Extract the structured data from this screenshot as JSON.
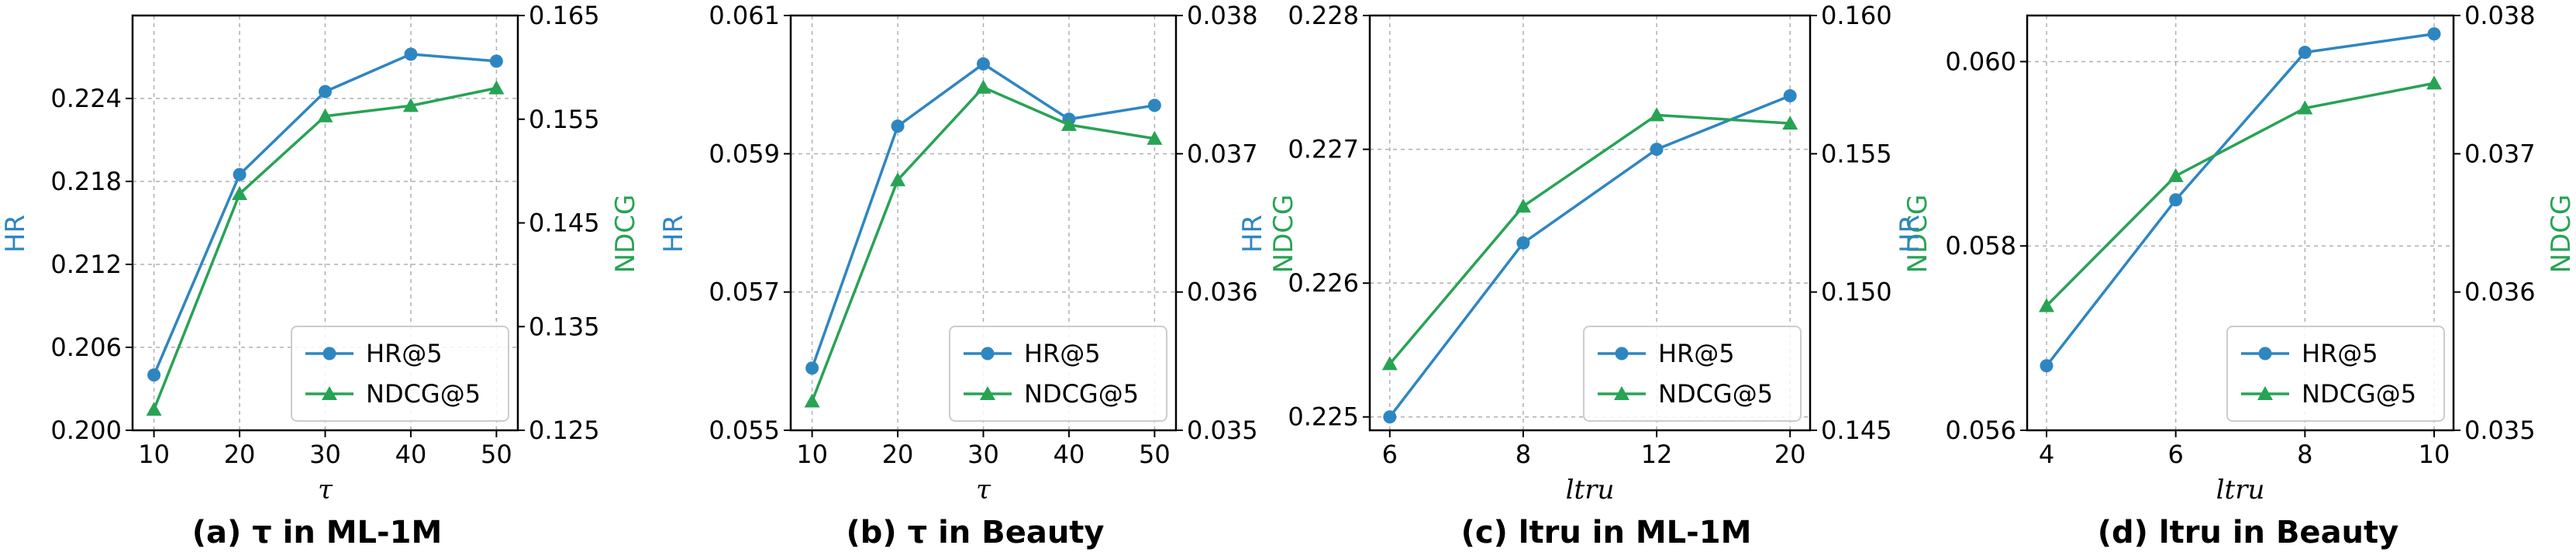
{
  "figure": {
    "hr_color": "#2e86c1",
    "ndcg_color": "#27a354",
    "left_axis_label": "HR",
    "right_axis_label": "NDCG"
  },
  "chart_data": [
    {
      "type": "line",
      "caption": "(a) τ in ML-1M",
      "xlabel": "τ",
      "x": [
        10,
        20,
        30,
        40,
        50
      ],
      "xticks": [
        "10",
        "20",
        "30",
        "40",
        "50"
      ],
      "xlim": [
        7.5,
        52.5
      ],
      "ylim_left": [
        0.2,
        0.23
      ],
      "yticks_left": [
        "0.200",
        "0.206",
        "0.212",
        "0.218",
        "0.224"
      ],
      "ylim_right": [
        0.125,
        0.165
      ],
      "yticks_right": [
        "0.125",
        "0.135",
        "0.145",
        "0.155",
        "0.165"
      ],
      "legend": "bottom-right",
      "series": [
        {
          "name": "HR@5",
          "axis": "left",
          "marker": "circle",
          "values": [
            0.204,
            0.2185,
            0.2245,
            0.2272,
            0.2267
          ]
        },
        {
          "name": "NDCG@5",
          "axis": "right",
          "marker": "triangle",
          "values": [
            0.127,
            0.1478,
            0.1553,
            0.1563,
            0.158
          ]
        }
      ]
    },
    {
      "type": "line",
      "caption": "(b) τ in Beauty",
      "xlabel": "τ",
      "x": [
        10,
        20,
        30,
        40,
        50
      ],
      "xticks": [
        "10",
        "20",
        "30",
        "40",
        "50"
      ],
      "xlim": [
        7.5,
        52.5
      ],
      "ylim_left": [
        0.055,
        0.061
      ],
      "yticks_left": [
        "0.055",
        "0.057",
        "0.059",
        "0.061"
      ],
      "ylim_right": [
        0.035,
        0.038
      ],
      "yticks_right": [
        "0.035",
        "0.036",
        "0.037",
        "0.038"
      ],
      "legend": "bottom-right",
      "series": [
        {
          "name": "HR@5",
          "axis": "left",
          "marker": "circle",
          "values": [
            0.0559,
            0.0594,
            0.0603,
            0.0595,
            0.0597
          ]
        },
        {
          "name": "NDCG@5",
          "axis": "right",
          "marker": "triangle",
          "values": [
            0.03521,
            0.03681,
            0.03748,
            0.03721,
            0.03711
          ]
        }
      ]
    },
    {
      "type": "line",
      "caption": "(c) ltru in ML-1M",
      "xlabel": "ltru",
      "x": [
        6,
        8,
        12,
        20
      ],
      "xticks": [
        "6",
        "8",
        "12",
        "20"
      ],
      "xlim": [
        -0.15,
        3.15
      ],
      "categorical_x": true,
      "ylim_left": [
        0.2249,
        0.228
      ],
      "yticks_left": [
        "0.225",
        "0.226",
        "0.227",
        "0.228"
      ],
      "ylim_right": [
        0.145,
        0.16
      ],
      "yticks_right": [
        "0.145",
        "0.150",
        "0.155",
        "0.160"
      ],
      "legend": "bottom-right",
      "series": [
        {
          "name": "HR@5",
          "axis": "left",
          "marker": "circle",
          "values": [
            0.225,
            0.2263,
            0.227,
            0.2274
          ]
        },
        {
          "name": "NDCG@5",
          "axis": "right",
          "marker": "triangle",
          "values": [
            0.1474,
            0.1531,
            0.1564,
            0.1561
          ]
        }
      ]
    },
    {
      "type": "line",
      "caption": "(d) ltru in Beauty",
      "xlabel": "ltru",
      "x": [
        4,
        6,
        8,
        10
      ],
      "xticks": [
        "4",
        "6",
        "8",
        "10"
      ],
      "xlim": [
        3.7,
        10.3
      ],
      "ylim_left": [
        0.056,
        0.0605
      ],
      "yticks_left": [
        "0.056",
        "0.058",
        "0.060"
      ],
      "ylim_right": [
        0.035,
        0.038
      ],
      "yticks_right": [
        "0.035",
        "0.036",
        "0.037",
        "0.038"
      ],
      "legend": "bottom-right",
      "series": [
        {
          "name": "HR@5",
          "axis": "left",
          "marker": "circle",
          "values": [
            0.0567,
            0.0585,
            0.0601,
            0.0603
          ]
        },
        {
          "name": "NDCG@5",
          "axis": "right",
          "marker": "triangle",
          "values": [
            0.0359,
            0.03684,
            0.03733,
            0.03751
          ]
        }
      ]
    }
  ]
}
